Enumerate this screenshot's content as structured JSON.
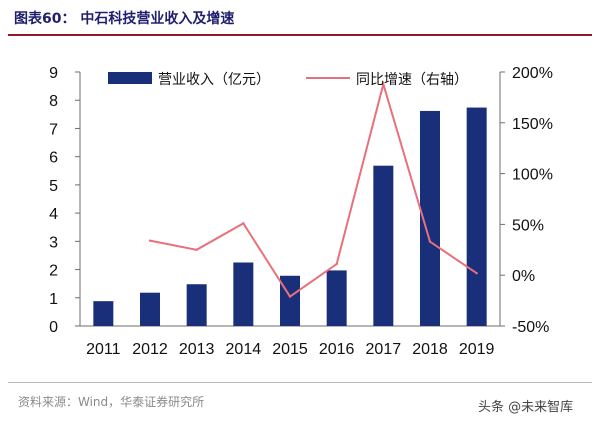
{
  "header": {
    "title": "图表60：   中石科技营业收入及增速"
  },
  "footer": {
    "source": "资料来源：Wind，华泰证券研究所",
    "watermark": "头条 @未来智库"
  },
  "colors": {
    "bar": "#1a2f7a",
    "line": "#e8707a",
    "title": "#1f1f6e",
    "rule": "#8b1c24"
  },
  "chart_data": {
    "type": "bar",
    "categories": [
      "2011",
      "2012",
      "2013",
      "2014",
      "2015",
      "2016",
      "2017",
      "2018",
      "2019"
    ],
    "series": [
      {
        "name": "营业收入（亿元）",
        "type": "bar",
        "axis": "left",
        "values": [
          0.88,
          1.18,
          1.48,
          2.25,
          1.78,
          1.97,
          5.68,
          7.62,
          7.74
        ]
      },
      {
        "name": "同比增速（右轴）",
        "type": "line",
        "axis": "right",
        "values": [
          null,
          0.34,
          0.25,
          0.51,
          -0.21,
          0.11,
          1.88,
          0.33,
          0.02
        ]
      }
    ],
    "y_left": {
      "min": 0,
      "max": 9,
      "ticks": [
        "0",
        "1",
        "2",
        "3",
        "4",
        "5",
        "6",
        "7",
        "8",
        "9"
      ]
    },
    "y_right": {
      "min": -0.5,
      "max": 2.0,
      "ticks": [
        "-50%",
        "0%",
        "50%",
        "100%",
        "150%",
        "200%"
      ]
    },
    "legend_position": "top",
    "grid": false
  }
}
